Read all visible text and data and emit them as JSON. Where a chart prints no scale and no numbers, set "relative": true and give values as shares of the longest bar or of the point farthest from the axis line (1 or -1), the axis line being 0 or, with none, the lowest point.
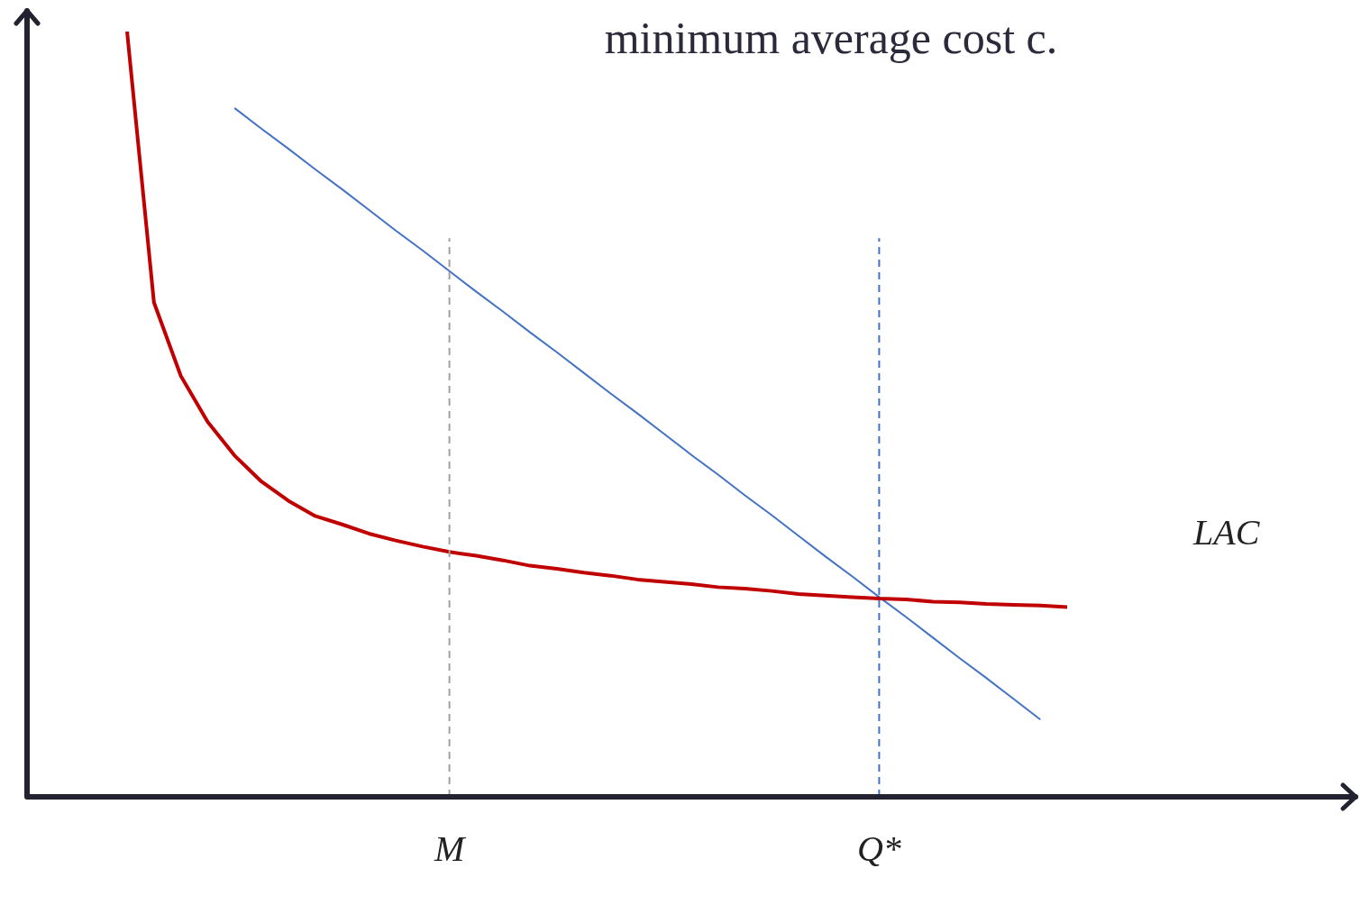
{
  "chart_data": {
    "type": "line",
    "title": "minimum average cost c.",
    "relative": true,
    "tick_labels": "x",
    "grid": false,
    "marker": "none",
    "categories": [
      null,
      null,
      null,
      null,
      null,
      null,
      null,
      null,
      null,
      null,
      null,
      null,
      "M",
      null,
      null,
      null,
      null,
      null,
      null,
      null,
      null,
      null,
      null,
      null,
      null,
      null,
      null,
      null,
      "Q*",
      null,
      null,
      null,
      null,
      null,
      null,
      null
    ],
    "series": [
      {
        "name": "LAC",
        "color": "#c00000",
        "values": [
          1.0,
          0.646,
          0.55,
          0.49,
          0.446,
          0.412,
          0.387,
          0.367,
          0.356,
          0.344,
          0.335,
          0.327,
          0.32,
          0.315,
          0.309,
          0.302,
          0.298,
          0.293,
          0.289,
          0.284,
          0.281,
          0.278,
          0.274,
          0.272,
          0.269,
          0.265,
          0.263,
          0.261,
          0.259,
          0.258,
          0.255,
          0.254,
          0.252,
          0.251,
          0.25,
          0.248
        ]
      },
      {
        "color": "#4472c4",
        "values": [
          null,
          null,
          null,
          null,
          0.9,
          0.873,
          0.847,
          0.82,
          0.794,
          0.767,
          0.74,
          0.714,
          0.687,
          0.66,
          0.634,
          0.607,
          0.581,
          0.554,
          0.527,
          0.501,
          0.474,
          0.447,
          0.421,
          0.394,
          0.368,
          0.341,
          0.314,
          0.288,
          0.261,
          0.235,
          0.208,
          0.181,
          0.155,
          0.128,
          0.101,
          null
        ]
      }
    ],
    "ref_lines": [
      {
        "axis": "x",
        "value": "M",
        "color": "#a0a0a0",
        "line_style": "dashed"
      },
      {
        "axis": "x",
        "value": "Q*",
        "color": "#4472c4",
        "line_style": "dashed"
      }
    ]
  }
}
